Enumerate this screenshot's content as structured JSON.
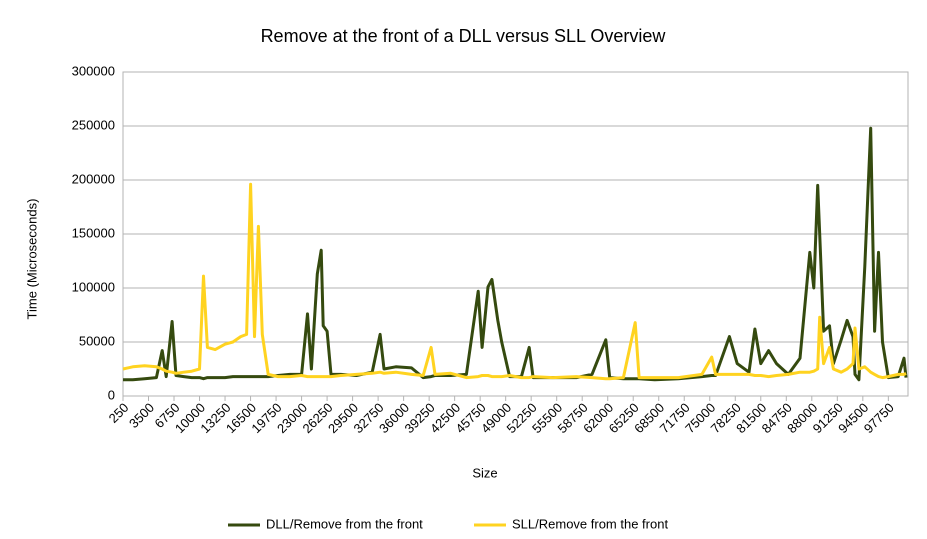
{
  "chart_data": {
    "type": "line",
    "title": "Remove at the front of a DLL versus SLL Overview",
    "x_label": "Size",
    "y_label": "Time (Microseconds)",
    "x": [
      250,
      1500,
      3000,
      4500,
      5250,
      5750,
      6500,
      7000,
      8000,
      9000,
      10000,
      10500,
      11000,
      12000,
      13250,
      14250,
      15250,
      16000,
      16500,
      17000,
      17500,
      18000,
      18750,
      20000,
      21500,
      23000,
      23750,
      24250,
      25000,
      25500,
      25750,
      26250,
      26750,
      28000,
      30000,
      32000,
      33000,
      33500,
      35000,
      37000,
      38500,
      39500,
      40000,
      42000,
      44000,
      45500,
      46000,
      46750,
      47250,
      48000,
      48500,
      49500,
      51000,
      52000,
      52500,
      55000,
      58000,
      60000,
      61750,
      62250,
      64000,
      65500,
      66000,
      68000,
      71000,
      74000,
      75250,
      75750,
      77500,
      78500,
      80000,
      80750,
      81500,
      82500,
      83500,
      85000,
      86500,
      87750,
      88250,
      88750,
      89000,
      89500,
      90250,
      90750,
      91750,
      92500,
      93250,
      93500,
      94000,
      94750,
      95500,
      96000,
      96500,
      97000,
      97750,
      99000,
      99750,
      100000
    ],
    "series": [
      {
        "name": "DLL/Remove from the front",
        "color": "#354a0f",
        "values": [
          15000,
          15000,
          16000,
          17000,
          42000,
          18000,
          69000,
          19000,
          18000,
          17000,
          17000,
          16000,
          17000,
          17000,
          17000,
          18000,
          18000,
          18000,
          18000,
          18000,
          18000,
          18000,
          18000,
          19000,
          20000,
          20000,
          76000,
          25000,
          113000,
          135000,
          65000,
          60000,
          20000,
          20000,
          19000,
          22000,
          57000,
          25000,
          27000,
          26000,
          17000,
          18000,
          19000,
          19000,
          20000,
          97000,
          45000,
          101000,
          108000,
          70000,
          50000,
          18000,
          18000,
          45000,
          17000,
          17000,
          17000,
          20000,
          52000,
          17000,
          16000,
          16000,
          16000,
          15000,
          16000,
          18000,
          19000,
          19000,
          55000,
          30000,
          22000,
          62000,
          30000,
          42000,
          30000,
          20000,
          35000,
          133000,
          100000,
          195000,
          150000,
          60000,
          65000,
          30000,
          52000,
          70000,
          55000,
          20000,
          15000,
          120000,
          248000,
          60000,
          133000,
          50000,
          17000,
          18000,
          35000,
          17000
        ]
      },
      {
        "name": "SLL/Remove from the front",
        "color": "#ffd320",
        "values": [
          25000,
          27000,
          28000,
          27000,
          25000,
          23000,
          22000,
          21000,
          22000,
          23000,
          25000,
          111000,
          45000,
          43000,
          48000,
          50000,
          55000,
          57000,
          196000,
          55000,
          157000,
          57000,
          20000,
          18000,
          18000,
          19000,
          18000,
          18000,
          18000,
          18000,
          18000,
          18000,
          18000,
          19000,
          20000,
          21000,
          22000,
          21000,
          22000,
          20000,
          19000,
          45000,
          20000,
          21000,
          17000,
          18000,
          19000,
          19000,
          18000,
          18000,
          18000,
          19000,
          17000,
          17000,
          18000,
          17000,
          18000,
          17000,
          16000,
          16000,
          17000,
          68000,
          17000,
          17000,
          17000,
          20000,
          36000,
          20000,
          20000,
          20000,
          20000,
          19000,
          19000,
          18000,
          19000,
          20000,
          22000,
          22000,
          23000,
          25000,
          73000,
          30000,
          45000,
          25000,
          22000,
          25000,
          30000,
          63000,
          25000,
          27000,
          22000,
          20000,
          18000,
          17000,
          18000,
          20000,
          20000,
          21000
        ]
      }
    ],
    "xlim": [
      250,
      100000
    ],
    "xticks": [
      250,
      3500,
      6750,
      10000,
      13250,
      16500,
      19750,
      23000,
      26250,
      29500,
      32750,
      36000,
      39250,
      42500,
      45750,
      49000,
      52250,
      55500,
      58750,
      62000,
      65250,
      68500,
      71750,
      75000,
      78250,
      81500,
      84750,
      88000,
      91250,
      94500,
      97750
    ],
    "ylim": [
      0,
      300000
    ],
    "yticks": [
      0,
      50000,
      100000,
      150000,
      200000,
      250000,
      300000
    ],
    "grid": true,
    "legend": "bottom"
  }
}
